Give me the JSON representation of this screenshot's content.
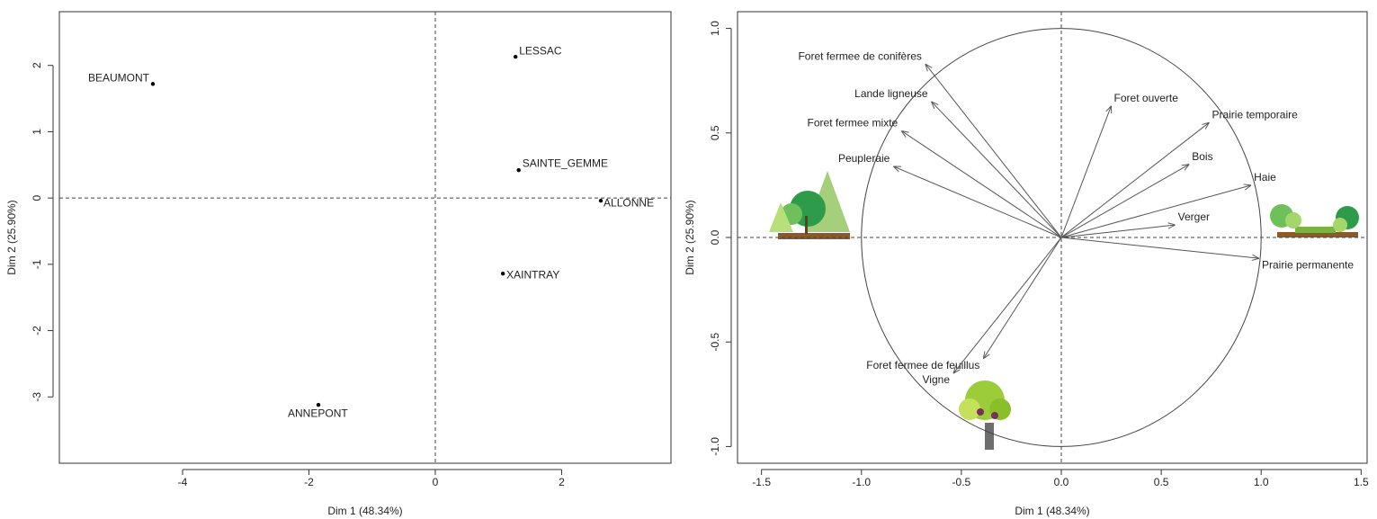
{
  "chart_data": [
    {
      "type": "scatter",
      "x_label": "Dim 1 (48.34%)",
      "y_label": "Dim 2 (25.90%)",
      "labels": [
        "BEAUMONT",
        "LESSAC",
        "SAINTE_GEMME",
        "ALLONNE",
        "XAINTRAY",
        "ANNEPONT"
      ],
      "x": [
        -4.47,
        1.27,
        1.32,
        2.62,
        1.07,
        -1.85
      ],
      "y": [
        1.72,
        2.13,
        0.42,
        -0.04,
        -1.14,
        -3.12
      ],
      "color": "#000000",
      "xlim": [
        -5.95,
        3.73
      ],
      "ylim": [
        -4.0,
        2.81
      ],
      "xticks": [
        -4,
        -2,
        0,
        2
      ],
      "yticks": [
        -3,
        -2,
        -1,
        0,
        1,
        2
      ]
    },
    {
      "type": "vector",
      "x_label": "Dim 1 (48.34%)",
      "y_label": "Dim 2 (25.90%)",
      "labels": [
        "Foret fermee de conifères",
        "Lande ligneuse",
        "Foret fermee mixte",
        "Peupleraie",
        "Foret ouverte",
        "Prairie temporaire",
        "Bois",
        "Haie",
        "Verger",
        "Prairie permanente",
        "Foret fermee de feuillus",
        "Vigne"
      ],
      "x": [
        -0.68,
        -0.65,
        -0.8,
        -0.84,
        0.25,
        0.74,
        0.64,
        0.95,
        0.57,
        0.99,
        -0.39,
        -0.54
      ],
      "y": [
        0.83,
        0.65,
        0.51,
        0.34,
        0.63,
        0.55,
        0.35,
        0.25,
        0.06,
        -0.1,
        -0.58,
        -0.65
      ],
      "color": "#555555",
      "unit_circle": true,
      "xlim": [
        -1.62,
        1.53
      ],
      "ylim": [
        -1.08,
        1.08
      ],
      "xticks": [
        {
          "value": -1.5,
          "label": "-1.5"
        },
        {
          "value": -1.0,
          "label": "-1.0"
        },
        {
          "value": -0.5,
          "label": "-0.5"
        },
        {
          "value": 0.0,
          "label": "0.0"
        },
        {
          "value": 0.5,
          "label": "0.5"
        },
        {
          "value": 1.0,
          "label": "1.0"
        },
        {
          "value": 1.5,
          "label": "1.5"
        }
      ],
      "yticks": [
        {
          "value": -1.0,
          "label": "-1.0"
        },
        {
          "value": -0.5,
          "label": "-0.5"
        },
        {
          "value": 0.0,
          "label": "0.0"
        },
        {
          "value": 0.5,
          "label": "0.5"
        },
        {
          "value": 1.0,
          "label": "1.0"
        }
      ]
    }
  ]
}
